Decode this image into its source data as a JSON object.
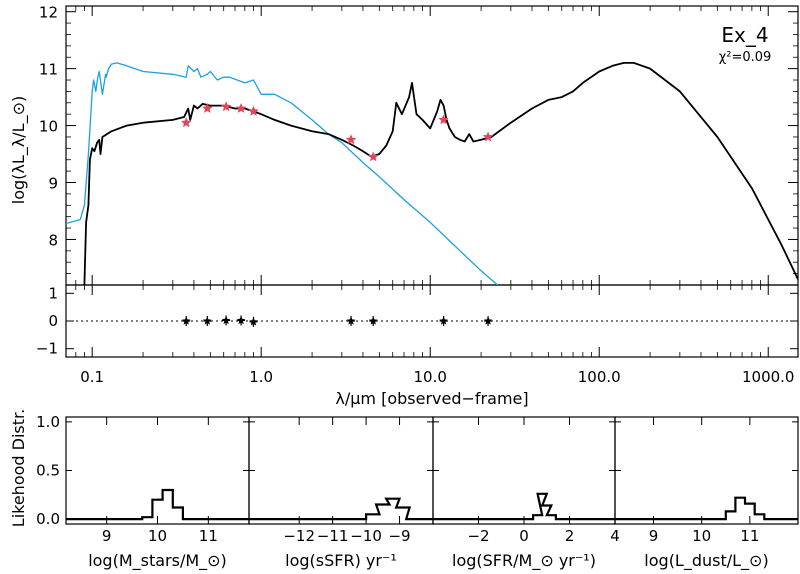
{
  "chart_data": [
    {
      "type": "line",
      "panel": "sed",
      "annotation": "Ex_4",
      "chi2_label": "χ²=0.09",
      "xlabel": "λ/μm [observed−frame]",
      "ylabel": "log(λL_λ/L_⊙)",
      "xscale": "log",
      "xlim": [
        0.07,
        1500
      ],
      "ylim": [
        7.2,
        12.1
      ],
      "xticks": [
        0.1,
        1.0,
        10.0,
        100.0,
        1000.0
      ],
      "xtick_labels": [
        "0.1",
        "1.0",
        "10.0",
        "100.0",
        "1000.0"
      ],
      "yticks": [
        8,
        9,
        10,
        11,
        12
      ],
      "ytick_labels": [
        "8",
        "9",
        "10",
        "11",
        "12"
      ],
      "colors": {
        "model": "#000000",
        "unattenuated": "#1e9fe0",
        "photometry": "#e0475a"
      },
      "series": [
        {
          "role": "unattenuated stellar model",
          "color": "#1e9fe0",
          "x": [
            0.07,
            0.085,
            0.09,
            0.095,
            0.1,
            0.102,
            0.105,
            0.108,
            0.11,
            0.115,
            0.12,
            0.121,
            0.125,
            0.13,
            0.14,
            0.16,
            0.2,
            0.3,
            0.36,
            0.37,
            0.4,
            0.42,
            0.44,
            0.48,
            0.5,
            0.55,
            0.6,
            0.65,
            0.8,
            0.9,
            1.0,
            1.2,
            1.5,
            2.0,
            2.5,
            3.0,
            4.0,
            5.0,
            7.0,
            10.0,
            15.0,
            20.0,
            25.0
          ],
          "y": [
            8.28,
            8.35,
            8.6,
            9.5,
            10.6,
            10.8,
            10.6,
            10.85,
            10.95,
            10.55,
            10.9,
            10.85,
            11.0,
            11.08,
            11.1,
            11.05,
            10.95,
            10.9,
            10.85,
            11.05,
            10.95,
            11.0,
            10.85,
            10.9,
            10.95,
            10.8,
            10.85,
            10.85,
            10.75,
            10.8,
            10.55,
            10.55,
            10.4,
            10.1,
            9.85,
            9.7,
            9.35,
            9.1,
            8.7,
            8.3,
            7.8,
            7.45,
            7.2
          ]
        },
        {
          "role": "best-fit attenuated model",
          "color": "#000000",
          "x": [
            0.09,
            0.092,
            0.095,
            0.097,
            0.1,
            0.103,
            0.107,
            0.11,
            0.112,
            0.115,
            0.13,
            0.16,
            0.2,
            0.3,
            0.35,
            0.37,
            0.38,
            0.4,
            0.42,
            0.45,
            0.5,
            0.6,
            0.7,
            0.8,
            0.9,
            1.0,
            1.2,
            1.5,
            2.0,
            2.5,
            3.0,
            3.5,
            4.0,
            4.5,
            5.0,
            5.5,
            6.0,
            6.3,
            6.8,
            7.5,
            7.8,
            8.3,
            9.0,
            10.0,
            11.0,
            11.5,
            12.0,
            12.5,
            13.0,
            14.0,
            15.0,
            16.0,
            17.0,
            18.0,
            20.0,
            23.0,
            30.0,
            40.0,
            50.0,
            60.0,
            70.0,
            80.0,
            100.0,
            120.0,
            140.0,
            160.0,
            200.0,
            300.0,
            500.0,
            800.0,
            1200.0,
            1500.0
          ],
          "y": [
            7.2,
            8.3,
            8.6,
            9.4,
            9.6,
            9.55,
            9.7,
            9.75,
            9.5,
            9.8,
            9.9,
            10.0,
            10.05,
            10.1,
            10.15,
            10.3,
            10.1,
            10.35,
            10.3,
            10.38,
            10.35,
            10.35,
            10.3,
            10.3,
            10.25,
            10.2,
            10.1,
            10.0,
            9.9,
            9.85,
            9.75,
            9.65,
            9.55,
            9.45,
            9.5,
            9.65,
            9.9,
            10.4,
            10.2,
            10.5,
            10.75,
            10.2,
            10.1,
            9.95,
            10.25,
            10.45,
            10.35,
            10.1,
            9.95,
            9.8,
            9.75,
            9.72,
            9.85,
            9.72,
            9.75,
            9.8,
            10.05,
            10.3,
            10.45,
            10.5,
            10.6,
            10.75,
            10.95,
            11.05,
            11.1,
            11.1,
            11.0,
            10.6,
            9.8,
            8.9,
            7.9,
            7.3
          ]
        }
      ],
      "photometry": {
        "x": [
          0.36,
          0.48,
          0.62,
          0.76,
          0.9,
          3.4,
          4.6,
          12.0,
          22.0
        ],
        "y": [
          10.05,
          10.3,
          10.33,
          10.3,
          10.25,
          9.75,
          9.45,
          10.1,
          9.8
        ]
      }
    },
    {
      "type": "scatter",
      "panel": "residuals",
      "xscale": "log",
      "xlim": [
        0.07,
        1500
      ],
      "ylim": [
        -1.3,
        1.3
      ],
      "yticks": [
        -1,
        0,
        1
      ],
      "ytick_labels": [
        "−1",
        "0",
        "1"
      ],
      "x": [
        0.36,
        0.48,
        0.62,
        0.76,
        0.9,
        3.4,
        4.6,
        12.0,
        22.0
      ],
      "y": [
        0.0,
        0.0,
        0.02,
        0.02,
        -0.03,
        0.0,
        0.0,
        0.0,
        0.0
      ]
    },
    {
      "type": "line",
      "panel": "likelihood",
      "ylabel": "Likehood Distr.",
      "ylim": [
        -0.05,
        1.05
      ],
      "yticks": [
        0.0,
        0.5,
        1.0
      ],
      "ytick_labels": [
        "0.0",
        "0.5",
        "1.0"
      ],
      "subplots": [
        {
          "xlabel": "log(M_stars/M_⊙)",
          "xlim": [
            8.2,
            11.8
          ],
          "xticks": [
            9,
            10,
            11
          ],
          "xtick_labels": [
            "9",
            "10",
            "11"
          ],
          "x": [
            9.6,
            9.8,
            10.0,
            10.2,
            10.4,
            10.6
          ],
          "y": [
            0.0,
            0.02,
            0.2,
            0.3,
            0.12,
            0.0
          ]
        },
        {
          "xlabel": "log(sSFR) yr⁻¹",
          "xlim": [
            -13.5,
            -8.0
          ],
          "xticks": [
            -12,
            -11,
            -10,
            -9
          ],
          "xtick_labels": [
            "−12",
            "−11",
            "−10",
            "−9"
          ],
          "x": [
            -10.2,
            -9.8,
            -9.5,
            -9.2,
            -8.9,
            -8.6
          ],
          "y": [
            0.0,
            0.05,
            0.15,
            0.21,
            0.12,
            0.0
          ]
        },
        {
          "xlabel": "log(SFR/M_⊙ yr⁻¹)",
          "xlim": [
            -4.0,
            4.0
          ],
          "xticks": [
            -2,
            0,
            2,
            4
          ],
          "xtick_labels": [
            "−2",
            "0",
            "2",
            "4"
          ],
          "x": [
            0.2,
            0.6,
            0.8,
            1.0,
            1.2,
            1.6
          ],
          "y": [
            0.0,
            0.04,
            0.26,
            0.14,
            0.04,
            0.0
          ]
        },
        {
          "xlabel": "log(L_dust/L_⊙)",
          "xlim": [
            8.2,
            12.0
          ],
          "xticks": [
            9,
            10,
            11
          ],
          "xtick_labels": [
            "9",
            "10",
            "11"
          ],
          "x": [
            10.4,
            10.6,
            10.8,
            11.0,
            11.2,
            11.4
          ],
          "y": [
            0.0,
            0.08,
            0.22,
            0.16,
            0.05,
            0.0
          ]
        }
      ]
    }
  ]
}
